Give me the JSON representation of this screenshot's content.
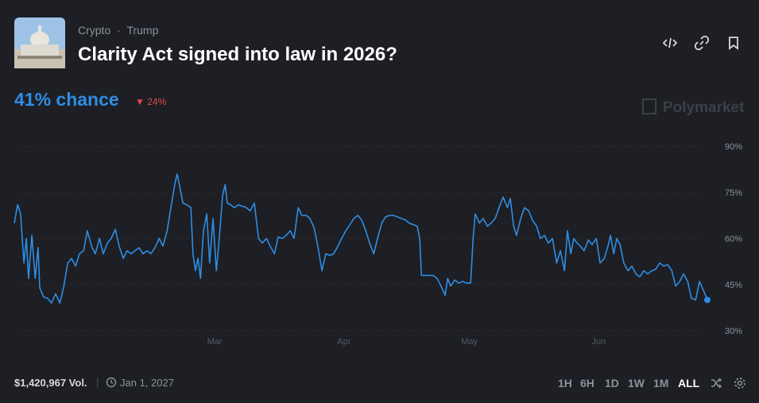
{
  "header": {
    "breadcrumb": [
      "Crypto",
      "Trump"
    ],
    "title": "Clarity Act signed into law in 2026?"
  },
  "chance": "41% chance",
  "change": "24%",
  "brand": "Polymarket",
  "footer": {
    "volume": "$1,420,967 Vol.",
    "end_date": "Jan 1, 2027",
    "ranges": [
      "1H",
      "6H",
      "1D",
      "1W",
      "1M",
      "ALL"
    ]
  },
  "chart_data": {
    "type": "line",
    "color": "#2f8de4",
    "grid": true,
    "xlim": [
      12,
      178
    ],
    "ylim": [
      30,
      90
    ],
    "xticks": [
      {
        "value": 60,
        "label": "Mar"
      },
      {
        "value": 91,
        "label": "Apr"
      },
      {
        "value": 121,
        "label": "May"
      },
      {
        "value": 152,
        "label": "Jun"
      }
    ],
    "yticks": [
      {
        "value": 30,
        "label": "30%"
      },
      {
        "value": 45,
        "label": "45%"
      },
      {
        "value": 60,
        "label": "60%"
      },
      {
        "value": 75,
        "label": "75%"
      },
      {
        "value": 90,
        "label": "90%"
      }
    ],
    "x": [
      12.0,
      12.8,
      13.5,
      14.3,
      14.9,
      15.4,
      16.2,
      17.0,
      17.7,
      18.1,
      19.0,
      20.0,
      20.9,
      21.9,
      22.9,
      23.8,
      24.8,
      25.7,
      26.7,
      27.6,
      28.6,
      29.5,
      30.5,
      31.4,
      32.4,
      33.3,
      34.3,
      35.2,
      36.2,
      37.1,
      38.1,
      39.0,
      40.0,
      40.9,
      41.9,
      42.8,
      43.8,
      44.7,
      45.7,
      46.7,
      47.6,
      48.6,
      49.5,
      50.5,
      51.0,
      51.6,
      52.4,
      53.3,
      54.3,
      54.8,
      55.4,
      56.0,
      56.6,
      57.3,
      58.1,
      58.8,
      59.6,
      60.4,
      61.1,
      61.9,
      62.5,
      63.0,
      63.8,
      64.7,
      65.7,
      66.6,
      67.6,
      68.5,
      69.5,
      70.5,
      71.4,
      72.4,
      73.3,
      74.3,
      75.2,
      76.2,
      77.1,
      78.1,
      79.0,
      80.0,
      80.9,
      81.9,
      82.8,
      83.8,
      84.7,
      85.7,
      86.6,
      87.6,
      88.5,
      89.5,
      90.4,
      91.4,
      92.4,
      93.3,
      94.3,
      95.2,
      96.2,
      97.1,
      98.1,
      99.0,
      100.0,
      100.9,
      101.9,
      102.8,
      103.8,
      104.7,
      105.7,
      106.6,
      107.6,
      108.5,
      109.1,
      109.5,
      110.4,
      111.4,
      112.3,
      113.3,
      114.2,
      115.2,
      115.8,
      116.5,
      117.5,
      118.4,
      119.4,
      120.3,
      121.3,
      121.9,
      122.4,
      123.4,
      124.3,
      125.3,
      126.2,
      127.2,
      128.1,
      129.1,
      130.1,
      130.8,
      131.6,
      132.3,
      133.3,
      134.2,
      135.2,
      136.1,
      137.1,
      138.0,
      139.0,
      139.9,
      140.9,
      141.9,
      142.8,
      143.8,
      144.5,
      145.3,
      146.0,
      146.8,
      147.6,
      148.5,
      149.5,
      150.4,
      151.4,
      152.3,
      153.3,
      154.2,
      154.8,
      155.6,
      156.3,
      157.1,
      158.0,
      159.0,
      159.9,
      160.9,
      161.8,
      162.8,
      163.7,
      164.7,
      165.6,
      166.6,
      167.6,
      168.5,
      169.5,
      170.4,
      171.4,
      172.3,
      173.3,
      174.2,
      175.2,
      176.1,
      177.1,
      178.0
    ],
    "values": [
      65,
      71,
      68,
      52,
      60,
      47,
      61,
      47,
      57,
      44,
      41,
      40.5,
      39,
      42,
      39,
      44,
      52,
      53.5,
      51,
      55,
      56,
      62.5,
      57.5,
      55,
      60,
      55,
      58.5,
      60,
      63,
      57.5,
      53.5,
      56,
      55,
      56,
      57,
      55,
      56,
      55,
      57,
      60,
      57.5,
      62.5,
      70,
      78,
      81,
      77,
      71.5,
      71,
      70,
      55,
      49.5,
      53.5,
      47,
      62.5,
      68,
      52,
      66.5,
      49.5,
      60,
      74,
      77.5,
      71.5,
      71,
      70,
      71,
      70.5,
      70,
      69,
      71.5,
      60,
      58.5,
      60,
      57.5,
      55,
      60.5,
      60,
      61,
      62.5,
      60,
      70,
      67.5,
      67.5,
      66.5,
      63.5,
      57.5,
      49.5,
      55,
      54.5,
      55,
      57.5,
      60,
      62.5,
      64.5,
      66.5,
      67.5,
      66,
      62.5,
      58.5,
      55,
      60,
      65,
      67,
      67.5,
      67.5,
      67,
      66.5,
      66,
      65,
      64.5,
      64,
      60,
      48,
      48,
      48,
      48,
      47,
      44.5,
      41.5,
      47,
      44.5,
      46.5,
      45.5,
      46,
      45.5,
      45.5,
      60,
      68,
      65,
      66.5,
      64,
      65,
      66.5,
      70,
      73.5,
      70,
      73,
      64,
      61,
      66.5,
      70,
      69,
      66,
      64,
      60,
      61,
      58.5,
      60,
      52,
      56,
      49.5,
      62.5,
      55,
      60,
      58.5,
      57.5,
      56,
      59.5,
      58,
      60,
      52,
      53.5,
      57.5,
      61,
      55,
      60,
      58,
      52,
      49.5,
      51,
      48.5,
      47.5,
      49.5,
      48.5,
      49.5,
      50,
      52,
      51,
      51.5,
      49.5,
      44.5,
      46,
      48.5,
      46,
      40.5,
      40,
      46,
      43,
      40
    ]
  }
}
